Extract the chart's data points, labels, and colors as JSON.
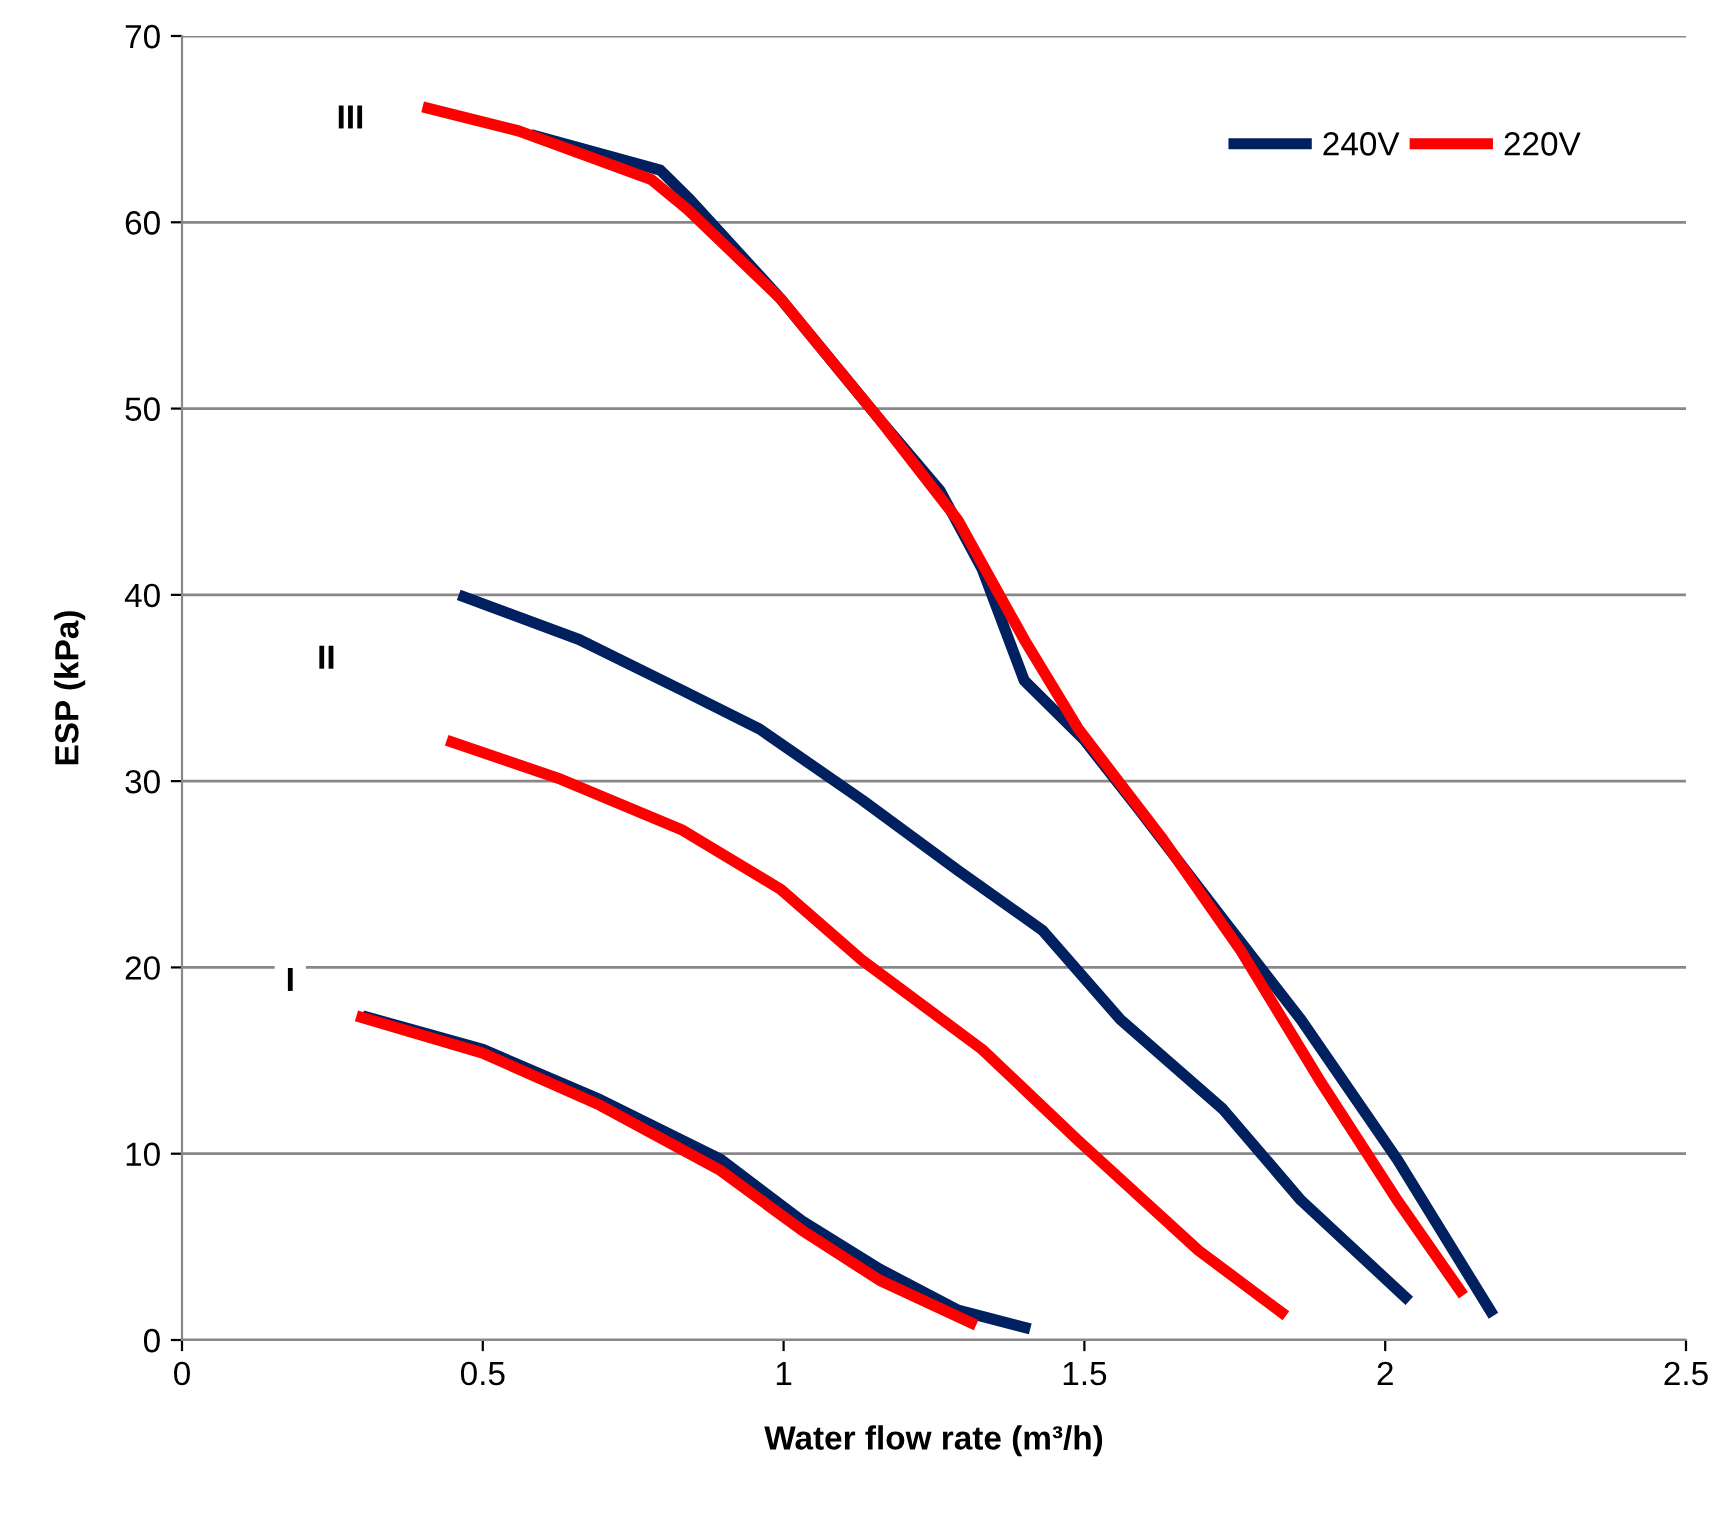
{
  "chart_data": {
    "type": "line",
    "xlabel": "Water flow rate (m³/h)",
    "ylabel": "ESP (kPa)",
    "xlim": [
      0,
      2.5
    ],
    "xticks": [
      0,
      0.5,
      1,
      1.5,
      2,
      2.5
    ],
    "ylim": [
      0,
      70
    ],
    "yticks": [
      0,
      10,
      20,
      30,
      40,
      50,
      60,
      70
    ],
    "grid": "y",
    "legend": "top right",
    "line_style": "solid",
    "marker": "none",
    "annotations": [
      {
        "text": "III",
        "x": 0.28,
        "y": 65.5
      },
      {
        "text": "II",
        "x": 0.24,
        "y": 36.5
      },
      {
        "text": "I",
        "x": 0.18,
        "y": 19.2
      }
    ],
    "series": [
      {
        "name": "240V",
        "color": "#002060",
        "x": [
          0.58,
          0.795,
          0.845,
          0.995,
          1.16,
          1.26,
          1.33,
          1.4,
          1.5,
          1.59,
          1.73,
          1.86,
          2.02,
          2.18
        ],
        "values": [
          64.7,
          62.8,
          61.2,
          55.9,
          49.4,
          45.6,
          41.4,
          35.4,
          32.2,
          28.5,
          22.6,
          17.2,
          9.7,
          1.3
        ]
      },
      {
        "name": "220V",
        "color": "#ff0000",
        "x": [
          0.4,
          0.56,
          0.78,
          0.84,
          0.995,
          1.16,
          1.29,
          1.4,
          1.49,
          1.63,
          1.76,
          1.89,
          2.02,
          2.13
        ],
        "values": [
          66.2,
          64.9,
          62.3,
          60.7,
          55.9,
          49.4,
          44.0,
          37.6,
          32.8,
          26.9,
          20.9,
          14.0,
          7.5,
          2.4
        ]
      },
      {
        "color": "#002060",
        "x": [
          0.46,
          0.66,
          0.83,
          0.96,
          1.13,
          1.29,
          1.43,
          1.56,
          1.73,
          1.86,
          2.04
        ],
        "values": [
          40.0,
          37.6,
          34.9,
          32.8,
          29.0,
          25.2,
          22.0,
          17.2,
          12.4,
          7.5,
          2.1
        ]
      },
      {
        "color": "#ff0000",
        "x": [
          0.44,
          0.63,
          0.83,
          0.995,
          1.13,
          1.33,
          1.49,
          1.69,
          1.835
        ],
        "values": [
          32.2,
          30.1,
          27.4,
          24.2,
          20.4,
          15.6,
          10.7,
          4.8,
          1.3
        ]
      },
      {
        "color": "#002060",
        "x": [
          0.3,
          0.5,
          0.695,
          0.895,
          1.03,
          1.16,
          1.29,
          1.41
        ],
        "values": [
          17.4,
          15.6,
          12.9,
          9.7,
          6.4,
          3.8,
          1.6,
          0.6
        ]
      },
      {
        "color": "#ff0000",
        "x": [
          0.29,
          0.5,
          0.695,
          0.895,
          1.03,
          1.16,
          1.32
        ],
        "values": [
          17.4,
          15.4,
          12.6,
          9.1,
          5.9,
          3.2,
          0.8
        ]
      }
    ]
  }
}
